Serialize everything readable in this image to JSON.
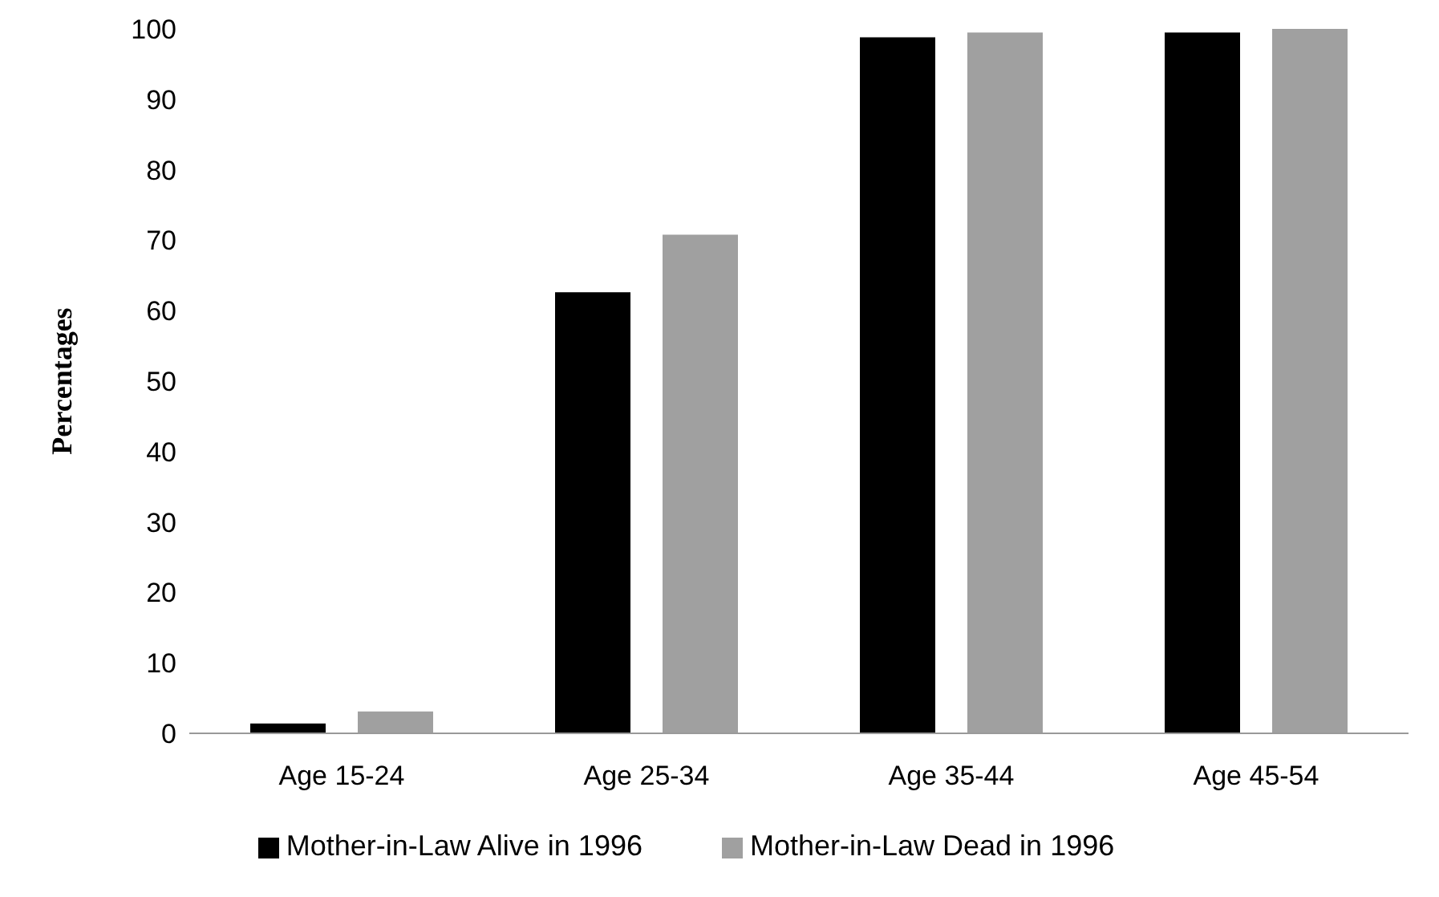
{
  "chart_data": {
    "type": "bar",
    "ylabel": "Percentages",
    "categories": [
      "Age 15-24",
      "Age 25-34",
      "Age 35-44",
      "Age 45-54"
    ],
    "series": [
      {
        "name": "Mother-in-Law Alive in 1996",
        "color": "#000000",
        "values": [
          1.4,
          62.6,
          98.8,
          99.5
        ]
      },
      {
        "name": "Mother-in-Law Dead in 1996",
        "color": "#a0a0a0",
        "values": [
          3.1,
          70.8,
          99.5,
          100
        ]
      }
    ],
    "ylim": [
      0,
      100
    ],
    "yticks": [
      0,
      10,
      20,
      30,
      40,
      50,
      60,
      70,
      80,
      90,
      100
    ],
    "grid": false,
    "legend": "bottom"
  }
}
